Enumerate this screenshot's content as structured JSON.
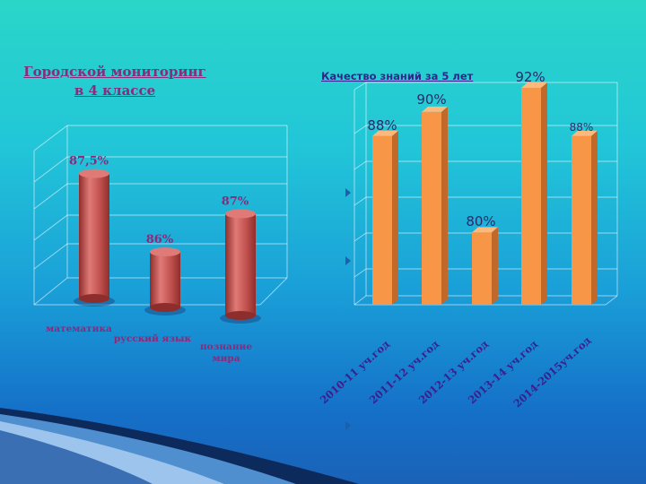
{
  "left_chart": {
    "title_line1": "Городской мониторинг",
    "title_line2": "в 4 классе",
    "colors": {
      "bar": "#c0504d",
      "bar_dark": "#8e2e2c",
      "bar_light": "#e07a76",
      "label": "#8a2a7a"
    },
    "chart_data": {
      "type": "bar",
      "categories": [
        "математика",
        "русский язык",
        "познание мира"
      ],
      "values": [
        87.5,
        86,
        87
      ],
      "data_labels": [
        "87,5%",
        "86%",
        "87%"
      ],
      "grid": true
    }
  },
  "right_chart": {
    "title": "Качество знаний за 5 лет",
    "colors": {
      "bar": "#f79646",
      "bar_dark": "#c0692a",
      "bar_top": "#fbb97d",
      "label": "#3a1f8f",
      "value_label": "#2a2a6a"
    },
    "chart_data": {
      "type": "bar",
      "categories": [
        "2010-11 уч.год",
        "2011-12 уч.год",
        "2012-13 уч.год",
        "2013-14 уч.год",
        "2014-2015уч.год"
      ],
      "values": [
        88,
        90,
        80,
        92,
        88
      ],
      "data_labels": [
        "88%",
        "90%",
        "80%",
        "92%",
        "88%"
      ],
      "grid": true
    }
  }
}
